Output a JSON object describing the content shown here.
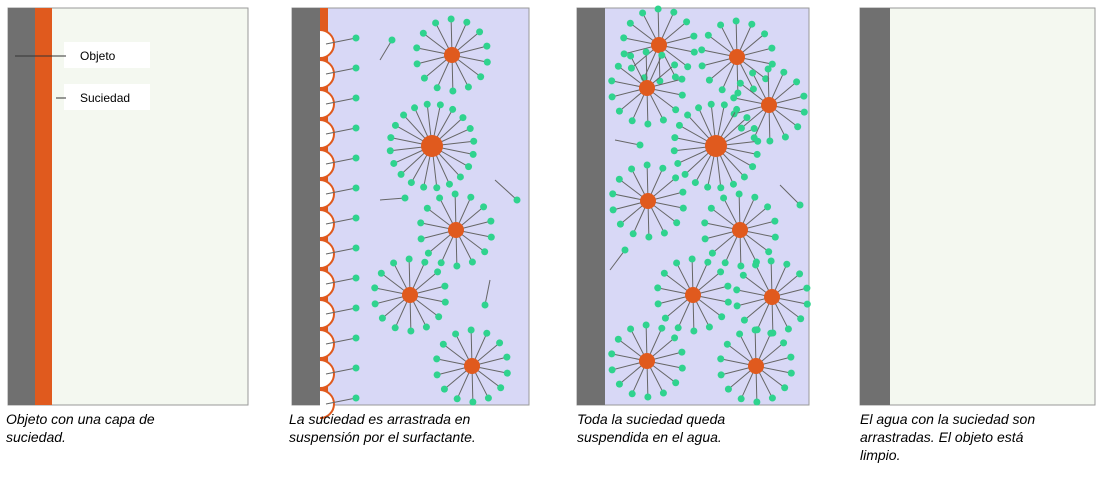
{
  "panel1": {
    "labels": [
      "Objeto",
      "Suciedad"
    ],
    "caption": [
      "Objeto con una capa de",
      "suciedad."
    ]
  },
  "panel2": {
    "caption": [
      "La suciedad es arrastrada en",
      "suspensión por el surfactante."
    ]
  },
  "panel3": {
    "caption": [
      "Toda la suciedad queda",
      "suspendida en el agua."
    ]
  },
  "panel4": {
    "caption": [
      "El agua con la suciedad son",
      "arrastradas. El objeto está",
      "limpio."
    ]
  }
}
